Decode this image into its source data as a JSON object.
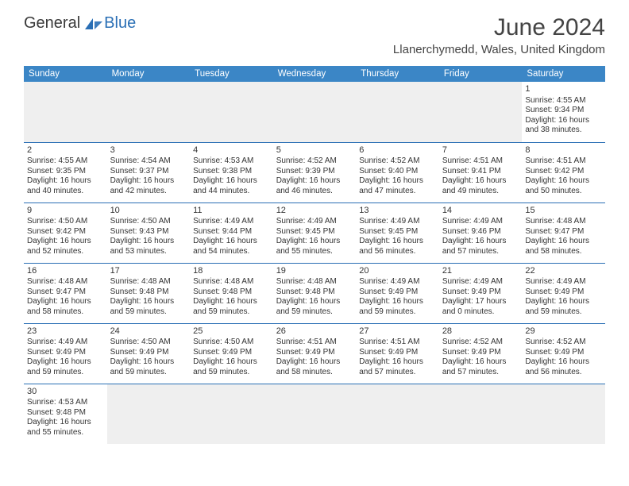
{
  "brand": {
    "part1": "General",
    "part2": "Blue"
  },
  "title": "June 2024",
  "location": "Llanerchymedd, Wales, United Kingdom",
  "colors": {
    "header_bg": "#3b86c6",
    "header_text": "#ffffff",
    "border": "#2a6fb5",
    "blank_bg": "#efefef",
    "text": "#333333",
    "brand2": "#2a6fb5"
  },
  "weekdays": [
    "Sunday",
    "Monday",
    "Tuesday",
    "Wednesday",
    "Thursday",
    "Friday",
    "Saturday"
  ],
  "weeks": [
    [
      null,
      null,
      null,
      null,
      null,
      null,
      {
        "n": "1",
        "sr": "Sunrise: 4:55 AM",
        "ss": "Sunset: 9:34 PM",
        "d1": "Daylight: 16 hours",
        "d2": "and 38 minutes."
      }
    ],
    [
      {
        "n": "2",
        "sr": "Sunrise: 4:55 AM",
        "ss": "Sunset: 9:35 PM",
        "d1": "Daylight: 16 hours",
        "d2": "and 40 minutes."
      },
      {
        "n": "3",
        "sr": "Sunrise: 4:54 AM",
        "ss": "Sunset: 9:37 PM",
        "d1": "Daylight: 16 hours",
        "d2": "and 42 minutes."
      },
      {
        "n": "4",
        "sr": "Sunrise: 4:53 AM",
        "ss": "Sunset: 9:38 PM",
        "d1": "Daylight: 16 hours",
        "d2": "and 44 minutes."
      },
      {
        "n": "5",
        "sr": "Sunrise: 4:52 AM",
        "ss": "Sunset: 9:39 PM",
        "d1": "Daylight: 16 hours",
        "d2": "and 46 minutes."
      },
      {
        "n": "6",
        "sr": "Sunrise: 4:52 AM",
        "ss": "Sunset: 9:40 PM",
        "d1": "Daylight: 16 hours",
        "d2": "and 47 minutes."
      },
      {
        "n": "7",
        "sr": "Sunrise: 4:51 AM",
        "ss": "Sunset: 9:41 PM",
        "d1": "Daylight: 16 hours",
        "d2": "and 49 minutes."
      },
      {
        "n": "8",
        "sr": "Sunrise: 4:51 AM",
        "ss": "Sunset: 9:42 PM",
        "d1": "Daylight: 16 hours",
        "d2": "and 50 minutes."
      }
    ],
    [
      {
        "n": "9",
        "sr": "Sunrise: 4:50 AM",
        "ss": "Sunset: 9:42 PM",
        "d1": "Daylight: 16 hours",
        "d2": "and 52 minutes."
      },
      {
        "n": "10",
        "sr": "Sunrise: 4:50 AM",
        "ss": "Sunset: 9:43 PM",
        "d1": "Daylight: 16 hours",
        "d2": "and 53 minutes."
      },
      {
        "n": "11",
        "sr": "Sunrise: 4:49 AM",
        "ss": "Sunset: 9:44 PM",
        "d1": "Daylight: 16 hours",
        "d2": "and 54 minutes."
      },
      {
        "n": "12",
        "sr": "Sunrise: 4:49 AM",
        "ss": "Sunset: 9:45 PM",
        "d1": "Daylight: 16 hours",
        "d2": "and 55 minutes."
      },
      {
        "n": "13",
        "sr": "Sunrise: 4:49 AM",
        "ss": "Sunset: 9:45 PM",
        "d1": "Daylight: 16 hours",
        "d2": "and 56 minutes."
      },
      {
        "n": "14",
        "sr": "Sunrise: 4:49 AM",
        "ss": "Sunset: 9:46 PM",
        "d1": "Daylight: 16 hours",
        "d2": "and 57 minutes."
      },
      {
        "n": "15",
        "sr": "Sunrise: 4:48 AM",
        "ss": "Sunset: 9:47 PM",
        "d1": "Daylight: 16 hours",
        "d2": "and 58 minutes."
      }
    ],
    [
      {
        "n": "16",
        "sr": "Sunrise: 4:48 AM",
        "ss": "Sunset: 9:47 PM",
        "d1": "Daylight: 16 hours",
        "d2": "and 58 minutes."
      },
      {
        "n": "17",
        "sr": "Sunrise: 4:48 AM",
        "ss": "Sunset: 9:48 PM",
        "d1": "Daylight: 16 hours",
        "d2": "and 59 minutes."
      },
      {
        "n": "18",
        "sr": "Sunrise: 4:48 AM",
        "ss": "Sunset: 9:48 PM",
        "d1": "Daylight: 16 hours",
        "d2": "and 59 minutes."
      },
      {
        "n": "19",
        "sr": "Sunrise: 4:48 AM",
        "ss": "Sunset: 9:48 PM",
        "d1": "Daylight: 16 hours",
        "d2": "and 59 minutes."
      },
      {
        "n": "20",
        "sr": "Sunrise: 4:49 AM",
        "ss": "Sunset: 9:49 PM",
        "d1": "Daylight: 16 hours",
        "d2": "and 59 minutes."
      },
      {
        "n": "21",
        "sr": "Sunrise: 4:49 AM",
        "ss": "Sunset: 9:49 PM",
        "d1": "Daylight: 17 hours",
        "d2": "and 0 minutes."
      },
      {
        "n": "22",
        "sr": "Sunrise: 4:49 AM",
        "ss": "Sunset: 9:49 PM",
        "d1": "Daylight: 16 hours",
        "d2": "and 59 minutes."
      }
    ],
    [
      {
        "n": "23",
        "sr": "Sunrise: 4:49 AM",
        "ss": "Sunset: 9:49 PM",
        "d1": "Daylight: 16 hours",
        "d2": "and 59 minutes."
      },
      {
        "n": "24",
        "sr": "Sunrise: 4:50 AM",
        "ss": "Sunset: 9:49 PM",
        "d1": "Daylight: 16 hours",
        "d2": "and 59 minutes."
      },
      {
        "n": "25",
        "sr": "Sunrise: 4:50 AM",
        "ss": "Sunset: 9:49 PM",
        "d1": "Daylight: 16 hours",
        "d2": "and 59 minutes."
      },
      {
        "n": "26",
        "sr": "Sunrise: 4:51 AM",
        "ss": "Sunset: 9:49 PM",
        "d1": "Daylight: 16 hours",
        "d2": "and 58 minutes."
      },
      {
        "n": "27",
        "sr": "Sunrise: 4:51 AM",
        "ss": "Sunset: 9:49 PM",
        "d1": "Daylight: 16 hours",
        "d2": "and 57 minutes."
      },
      {
        "n": "28",
        "sr": "Sunrise: 4:52 AM",
        "ss": "Sunset: 9:49 PM",
        "d1": "Daylight: 16 hours",
        "d2": "and 57 minutes."
      },
      {
        "n": "29",
        "sr": "Sunrise: 4:52 AM",
        "ss": "Sunset: 9:49 PM",
        "d1": "Daylight: 16 hours",
        "d2": "and 56 minutes."
      }
    ],
    [
      {
        "n": "30",
        "sr": "Sunrise: 4:53 AM",
        "ss": "Sunset: 9:48 PM",
        "d1": "Daylight: 16 hours",
        "d2": "and 55 minutes."
      },
      null,
      null,
      null,
      null,
      null,
      null
    ]
  ]
}
